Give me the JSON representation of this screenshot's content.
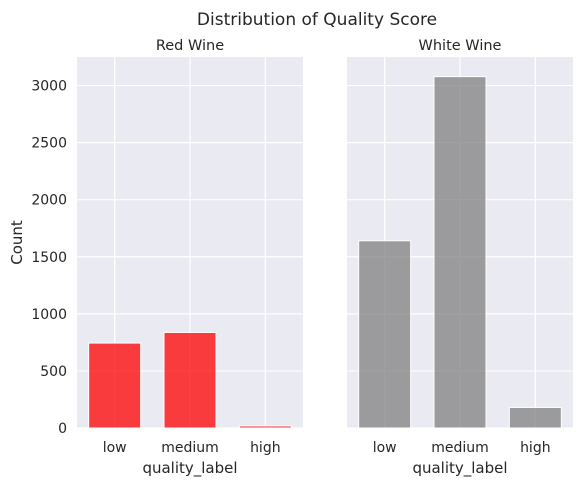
{
  "suptitle": "Distribution of Quality Score",
  "chart_data": [
    {
      "type": "bar",
      "title": "Red Wine",
      "xlabel": "quality_label",
      "ylabel": "Count",
      "categories": [
        "low",
        "medium",
        "high"
      ],
      "values": [
        744,
        837,
        18
      ],
      "ylim": [
        0,
        3250
      ],
      "yticks": [
        0,
        500,
        1000,
        1500,
        2000,
        2500,
        3000
      ],
      "color": "#ff0000",
      "grid": true
    },
    {
      "type": "bar",
      "title": "White Wine",
      "xlabel": "quality_label",
      "ylabel": "",
      "categories": [
        "low",
        "medium",
        "high"
      ],
      "values": [
        1640,
        3078,
        180
      ],
      "ylim": [
        0,
        3250
      ],
      "yticks": [
        0,
        500,
        1000,
        1500,
        2000,
        2500,
        3000
      ],
      "color": "#808080",
      "grid": true
    }
  ],
  "colors": {
    "plot_bg": "#eaeaf2",
    "grid": "#ffffff",
    "text": "#262626"
  }
}
